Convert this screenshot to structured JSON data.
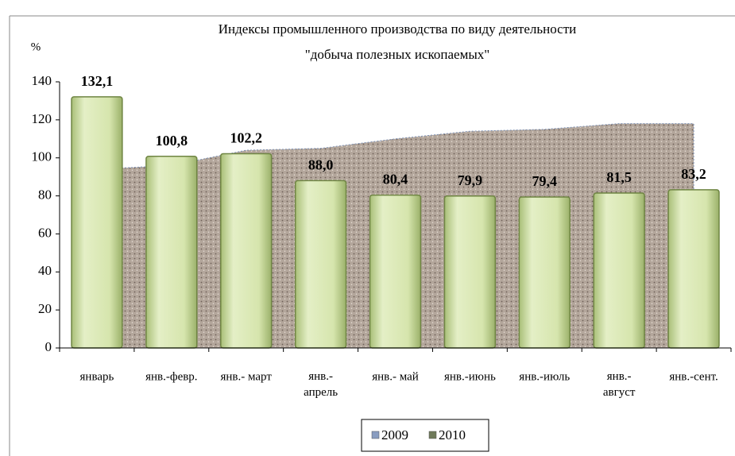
{
  "chart_data": {
    "type": "bar",
    "title": "Индексы промышленного производства по виду деятельности",
    "subtitle": "\"добыча полезных ископаемых\"",
    "y_label": "%",
    "categories": [
      "январь",
      "янв.-февр.",
      "янв.- март",
      "янв.-\nапрель",
      "янв.- май",
      "янв.-июнь",
      "янв.-июль",
      "янв.-\nавгуст",
      "янв.-сент."
    ],
    "series": [
      {
        "name": "2009",
        "type": "area",
        "color": "#b3a69b",
        "values": [
          94,
          96,
          104,
          105,
          110,
          114,
          115,
          118,
          118
        ]
      },
      {
        "name": "2010",
        "type": "bar",
        "color": "#d6e5ad",
        "values": [
          132.1,
          100.8,
          102.2,
          88.0,
          80.4,
          79.9,
          79.4,
          81.5,
          83.2
        ],
        "value_labels": [
          "132,1",
          "100,8",
          "102,2",
          "88,0",
          "80,4",
          "79,9",
          "79,4",
          "81,5",
          "83,2"
        ]
      }
    ],
    "ylim": [
      0,
      140
    ],
    "yticks": [
      0,
      20,
      40,
      60,
      80,
      100,
      120,
      140
    ],
    "legend": "bottom"
  }
}
